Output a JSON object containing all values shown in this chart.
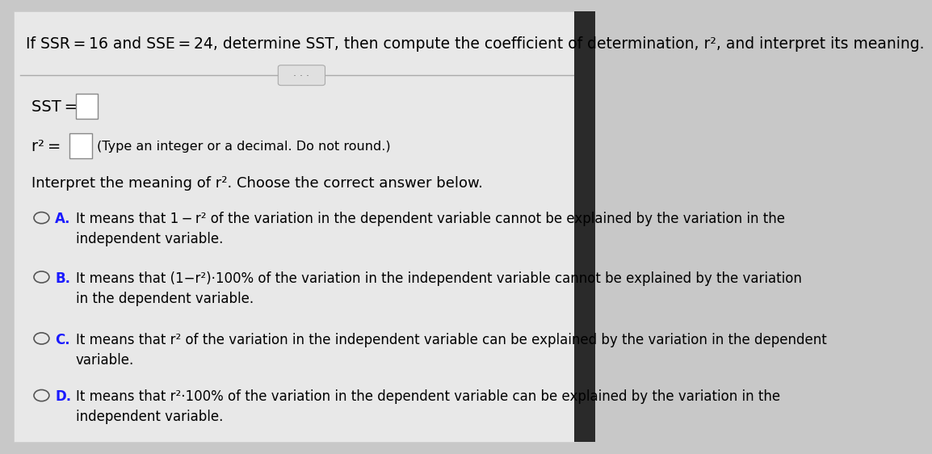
{
  "bg_color": "#d9d9d9",
  "content_bg": "#e8e8e8",
  "header_bg": "#2d6e2d",
  "header_text": "If SSR = 16 and SSE = 24, determine SST, then compute the coefficient of determination, r², and interpret its meaning.",
  "header_fontsize": 13.5,
  "divider_color": "#aaaaaa",
  "dots_color": "#888888",
  "sst_label": "SST =",
  "r2_label": "r² =",
  "r2_hint": "(Type an integer or a decimal. Do not round.)",
  "interpret_label": "Interpret the meaning of r². Choose the correct answer below.",
  "option_A_letter": "A.",
  "option_A_text": "It means that 1 − r² of the variation in the dependent variable cannot be explained by the variation in the\nindependent variable.",
  "option_B_letter": "B.",
  "option_B_text": "It means that (1−r²)·100% of the variation in the independent variable cannot be explained by the variation\nin the dependent variable.",
  "option_C_letter": "C.",
  "option_C_text": "It means that r² of the variation in the independent variable can be explained by the variation in the dependent\nvariable.",
  "option_D_letter": "D.",
  "option_D_text": "It means that r²·100% of the variation in the dependent variable can be explained by the variation in the\nindependent variable.",
  "text_color": "#000000",
  "blue_color": "#1a1aff",
  "circle_color": "#555555",
  "box_color": "#bbbbbb",
  "label_fontsize": 13,
  "body_fontsize": 12,
  "option_fontsize": 12
}
